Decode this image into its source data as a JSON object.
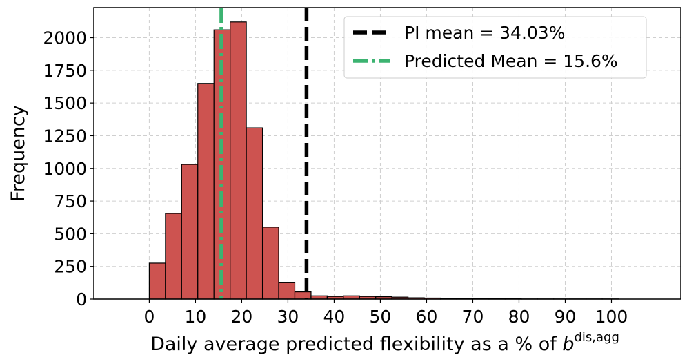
{
  "chart_data": {
    "type": "bar",
    "subtype": "histogram",
    "xlabel": "Daily average predicted flexibility as a % of ",
    "xlabel_symbol": "b",
    "xlabel_superscript": "dis,agg",
    "ylabel": "Frequency",
    "xlim": [
      -12,
      115
    ],
    "ylim": [
      0,
      2230
    ],
    "grid": true,
    "x_ticks": [
      0,
      10,
      20,
      30,
      40,
      50,
      60,
      70,
      80,
      90,
      100
    ],
    "x_tick_labels": [
      "0",
      "10",
      "20",
      "30",
      "40",
      "50",
      "60",
      "70",
      "80",
      "90",
      "100"
    ],
    "y_ticks": [
      0,
      250,
      500,
      750,
      1000,
      1250,
      1500,
      1750,
      2000
    ],
    "y_tick_labels": [
      "0",
      "250",
      "500",
      "750",
      "1000",
      "1250",
      "1500",
      "1750",
      "2000"
    ],
    "bin_width": 3.5,
    "bins_start": [
      0,
      3.5,
      7,
      10.5,
      14,
      17.5,
      21,
      24.5,
      28,
      31.5,
      35,
      38.5,
      42,
      45.5,
      49,
      52.5,
      56,
      59.5,
      63,
      66.5,
      70,
      73.5,
      77,
      80.5,
      84,
      87.5,
      91,
      94.5,
      98,
      101.5,
      105,
      108.5
    ],
    "values": [
      275,
      655,
      1030,
      1650,
      2060,
      2120,
      1310,
      550,
      125,
      55,
      25,
      20,
      25,
      20,
      18,
      15,
      10,
      8,
      5,
      4,
      3,
      2,
      2,
      1,
      1,
      1,
      1,
      1,
      1,
      0,
      0,
      0
    ],
    "bar_color": "#cd5350",
    "lines": [
      {
        "name": "PI mean = 34.03%",
        "x": 34.03,
        "style": "dashed",
        "color": "#000000"
      },
      {
        "name": "Predicted Mean = 15.6%",
        "x": 15.6,
        "style": "dashdot",
        "color": "#3cb371"
      }
    ],
    "legend": {
      "position": "top-right",
      "entries": [
        "PI mean = 34.03%",
        "Predicted Mean = 15.6%"
      ]
    }
  }
}
